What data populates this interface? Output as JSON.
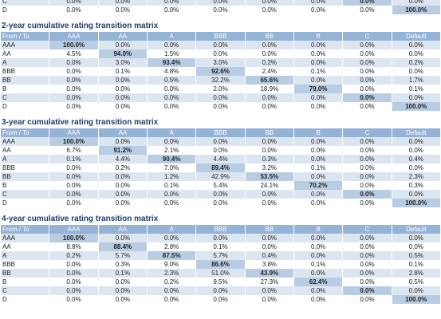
{
  "tables": [
    {
      "rows": [
        [
          "C",
          "0.0%",
          "0.0%",
          "0.0%",
          "0.0%",
          "0.0%",
          "0.0%",
          "0.0%",
          "0.0%"
        ],
        [
          "D",
          "0.0%",
          "0.0%",
          "0.0%",
          "0.0%",
          "0.0%",
          "0.0%",
          "0.0%",
          "100.0%"
        ]
      ]
    },
    {
      "title": "2-year cumulative rating transition matrix",
      "header": [
        "From / To",
        "AAA",
        "AA",
        "A",
        "BBB",
        "BB",
        "B",
        "C",
        "Default"
      ],
      "rows": [
        [
          "AAA",
          "100.0%",
          "0.0%",
          "0.0%",
          "0.0%",
          "0.0%",
          "0.0%",
          "0.0%",
          "0.0%"
        ],
        [
          "AA",
          "4.5%",
          "94.0%",
          "1.5%",
          "0.0%",
          "0.0%",
          "0.0%",
          "0.0%",
          "0.0%"
        ],
        [
          "A",
          "0.0%",
          "3.0%",
          "93.4%",
          "3.0%",
          "0.2%",
          "0.0%",
          "0.0%",
          "0.2%"
        ],
        [
          "BBB",
          "0.0%",
          "0.1%",
          "4.8%",
          "92.6%",
          "2.4%",
          "0.1%",
          "0.0%",
          "0.0%"
        ],
        [
          "BB",
          "0.0%",
          "0.0%",
          "0.5%",
          "32.2%",
          "65.6%",
          "0.0%",
          "0.0%",
          "1.7%"
        ],
        [
          "B",
          "0.0%",
          "0.0%",
          "0.0%",
          "2.0%",
          "18.9%",
          "79.0%",
          "0.0%",
          "0.1%"
        ],
        [
          "C",
          "0.0%",
          "0.0%",
          "0.0%",
          "0.0%",
          "0.0%",
          "0.0%",
          "0.0%",
          "0.0%"
        ],
        [
          "D",
          "0.0%",
          "0.0%",
          "0.0%",
          "0.0%",
          "0.0%",
          "0.0%",
          "0.0%",
          "100.0%"
        ]
      ]
    },
    {
      "title": "3-year cumulative rating transition matrix",
      "header": [
        "From / To",
        "AAA",
        "AA",
        "A",
        "BBB",
        "BB",
        "B",
        "C",
        "Default"
      ],
      "rows": [
        [
          "AAA",
          "100.0%",
          "0.0%",
          "0.0%",
          "0.0%",
          "0.0%",
          "0.0%",
          "0.0%",
          "0.0%"
        ],
        [
          "AA",
          "6.7%",
          "91.2%",
          "2.1%",
          "0.0%",
          "0.0%",
          "0.0%",
          "0.0%",
          "0.0%"
        ],
        [
          "A",
          "0.1%",
          "4.4%",
          "90.4%",
          "4.4%",
          "0.3%",
          "0.0%",
          "0.0%",
          "0.4%"
        ],
        [
          "BBB",
          "0.0%",
          "0.2%",
          "7.0%",
          "89.4%",
          "3.2%",
          "0.1%",
          "0.0%",
          "0.0%"
        ],
        [
          "BB",
          "0.0%",
          "0.0%",
          "1.2%",
          "42.9%",
          "53.5%",
          "0.0%",
          "0.0%",
          "2.3%"
        ],
        [
          "B",
          "0.0%",
          "0.0%",
          "0.1%",
          "5.4%",
          "24.1%",
          "70.2%",
          "0.0%",
          "0.3%"
        ],
        [
          "C",
          "0.0%",
          "0.0%",
          "0.0%",
          "0.0%",
          "0.0%",
          "0.0%",
          "0.0%",
          "0.0%"
        ],
        [
          "D",
          "0.0%",
          "0.0%",
          "0.0%",
          "0.0%",
          "0.0%",
          "0.0%",
          "0.0%",
          "100.0%"
        ]
      ]
    },
    {
      "title": "4-year cumulative rating transition matrix",
      "header": [
        "From / To",
        "AAA",
        "AA",
        "A",
        "BBB",
        "BB",
        "B",
        "C",
        "Default"
      ],
      "rows": [
        [
          "AAA",
          "100.0%",
          "0.0%",
          "0.0%",
          "0.0%",
          "0.0%",
          "0.0%",
          "0.0%",
          "0.0%"
        ],
        [
          "AA",
          "8.8%",
          "88.4%",
          "2.8%",
          "0.1%",
          "0.0%",
          "0.0%",
          "0.0%",
          "0.0%"
        ],
        [
          "A",
          "0.2%",
          "5.7%",
          "87.5%",
          "5.7%",
          "0.4%",
          "0.0%",
          "0.0%",
          "0.5%"
        ],
        [
          "BBB",
          "0.0%",
          "0.3%",
          "9.0%",
          "86.6%",
          "3.8%",
          "0.1%",
          "0.0%",
          "0.1%"
        ],
        [
          "BB",
          "0.0%",
          "0.1%",
          "2.3%",
          "51.0%",
          "43.9%",
          "0.0%",
          "0.0%",
          "2.8%"
        ],
        [
          "B",
          "0.0%",
          "0.0%",
          "0.2%",
          "9.5%",
          "27.3%",
          "62.4%",
          "0.0%",
          "0.5%"
        ],
        [
          "C",
          "0.0%",
          "0.0%",
          "0.0%",
          "0.0%",
          "0.0%",
          "0.0%",
          "0.0%",
          "0.0%"
        ],
        [
          "D",
          "0.0%",
          "0.0%",
          "0.0%",
          "0.0%",
          "0.0%",
          "0.0%",
          "0.0%",
          "100.0%"
        ]
      ]
    }
  ]
}
